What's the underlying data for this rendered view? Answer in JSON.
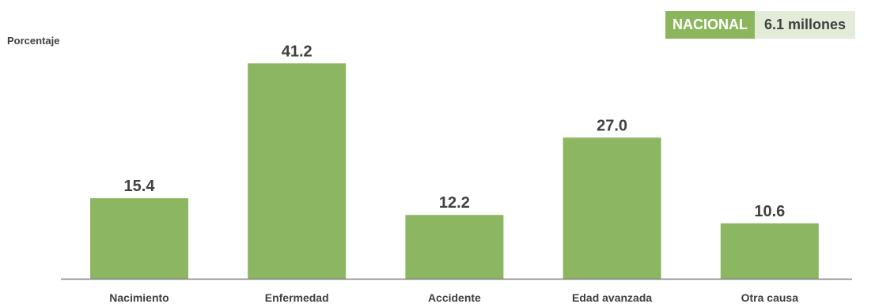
{
  "badge": {
    "label": "NACIONAL",
    "value": "6.1 millones"
  },
  "colors": {
    "bar": "#8db662",
    "axis": "#808080",
    "label": "#404040",
    "badge_dark": "#8cb65e",
    "badge_light": "#e3ecd8"
  },
  "chart_data": {
    "type": "bar",
    "title": "",
    "xlabel": "",
    "ylabel": "Porcentaje",
    "categories": [
      "Nacimiento",
      "Enfermedad",
      "Accidente",
      "Edad avanzada",
      "Otra causa"
    ],
    "values": [
      15.4,
      41.2,
      12.2,
      27.0,
      10.6
    ],
    "value_labels": [
      "15.4",
      "41.2",
      "12.2",
      "27.0",
      "10.6"
    ],
    "ylim": [
      0,
      45
    ],
    "grid": false,
    "legend": "none"
  }
}
